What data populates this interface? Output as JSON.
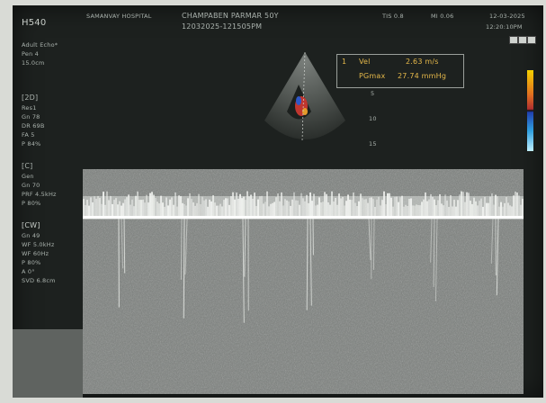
{
  "header": {
    "probe": "H540",
    "hospital": "SAMANVAY HOSPITAL",
    "patient": "CHAMPABEN PARMAR 50Y",
    "exam_time": "12032025-121505PM",
    "ti": "TIS  0.8",
    "mi": "MI  0.06",
    "date": "12-03-2025",
    "time": "12:20:10PM"
  },
  "left_top": [
    "Adult Echo*",
    "Pen 4",
    "15.0cm"
  ],
  "sections": {
    "b_title": "[2D]",
    "b_lines": [
      "Res1",
      "Gn  78",
      "DR  69B",
      "FA  5",
      "P   84%"
    ],
    "c_title": "[C]",
    "c_lines": [
      "Gen",
      "Gn  70",
      "PRF 4.5kHz",
      "P   80%"
    ],
    "cw_title": "[CW]",
    "cw_lines": [
      "Gn  49",
      "WF  5.0kHz",
      "WF  60Hz",
      "P   80%",
      "A   0°",
      "SVD 6.8cm"
    ]
  },
  "measure": {
    "index": "1",
    "vel_label": "Vel",
    "vel_value": "2.63 m/s",
    "pg_label": "PGmax",
    "pg_value": "27.74 mmHg"
  },
  "depth_ticks": [
    "5",
    "10",
    "15"
  ],
  "icons": [
    "freeze-icon",
    "layout-icon",
    "print-icon"
  ]
}
